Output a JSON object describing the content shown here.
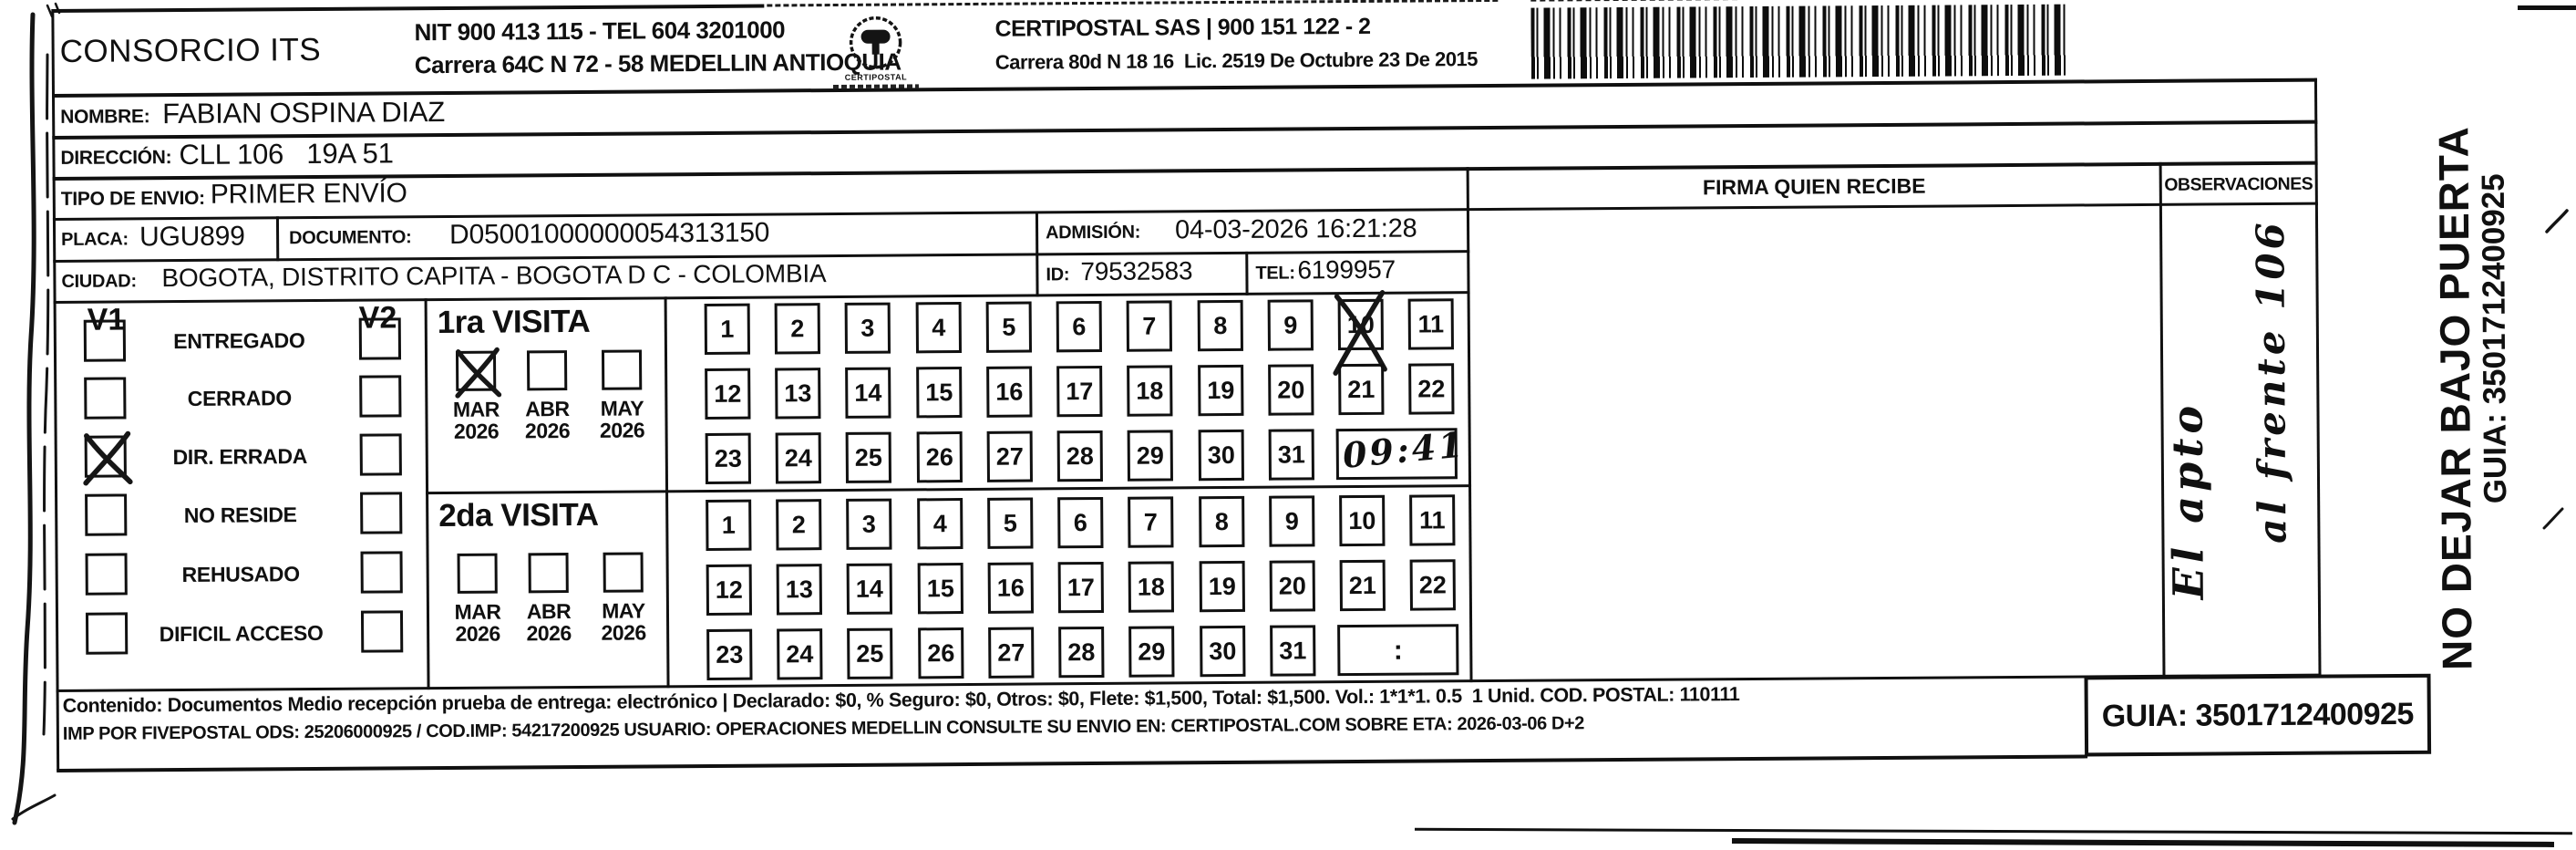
{
  "header": {
    "company": "CONSORCIO ITS",
    "company_info_line1": "NIT 900 413 115 - TEL 604 3201000",
    "company_info_line2": "Carrera 64C N 72 - 58 MEDELLIN ANTIOQUIA",
    "logo_caption": "CERTIPOSTAL",
    "partner_line1": "CERTIPOSTAL SAS | 900 151 122 - 2",
    "partner_line2": "Carrera 80d N 18 16  Lic. 2519 De Octubre 23 De 2015"
  },
  "recipient": {
    "nombre_label": "NOMBRE:",
    "nombre": "FABIAN OSPINA DIAZ",
    "direccion_label": "DIRECCIÓN:",
    "direccion": "CLL 106   19A 51",
    "tipo_label": "TIPO DE ENVIO:",
    "tipo": "PRIMER ENVÍO",
    "placa_label": "PLACA:",
    "placa": "UGU899",
    "documento_label": "DOCUMENTO:",
    "documento": "D05001000000054313150",
    "admision_label": "ADMISIÓN:",
    "admision": "04-03-2026 16:21:28",
    "ciudad_label": "CIUDAD:",
    "ciudad": "BOGOTA, DISTRITO CAPITA - BOGOTA D C - COLOMBIA",
    "id_label": "ID:",
    "id": "79532583",
    "tel_label": "TEL:",
    "tel": "6199957"
  },
  "columns": {
    "firma": "FIRMA QUIEN RECIBE",
    "observaciones": "OBSERVACIONES"
  },
  "status": {
    "v1_label": "V1",
    "v2_label": "V2",
    "options": [
      {
        "label": "ENTREGADO",
        "v1": false,
        "v2": false
      },
      {
        "label": "CERRADO",
        "v1": false,
        "v2": false
      },
      {
        "label": "DIR. ERRADA",
        "v1": true,
        "v2": false
      },
      {
        "label": "NO RESIDE",
        "v1": false,
        "v2": false
      },
      {
        "label": "REHUSADO",
        "v1": false,
        "v2": false
      },
      {
        "label": "DIFICIL ACCESO",
        "v1": false,
        "v2": false
      }
    ]
  },
  "visits": [
    {
      "title": "1ra VISITA",
      "months": [
        {
          "month": "MAR",
          "year": "2026",
          "checked": true
        },
        {
          "month": "ABR",
          "year": "2026",
          "checked": false
        },
        {
          "month": "MAY",
          "year": "2026",
          "checked": false
        }
      ],
      "crossed_day": "10",
      "time_handwritten": "09:41"
    },
    {
      "title": "2da VISITA",
      "months": [
        {
          "month": "MAR",
          "year": "2026",
          "checked": false
        },
        {
          "month": "ABR",
          "year": "2026",
          "checked": false
        },
        {
          "month": "MAY",
          "year": "2026",
          "checked": false
        }
      ],
      "crossed_day": "",
      "time_handwritten": ""
    }
  ],
  "day_rows": [
    [
      "1",
      "2",
      "3",
      "4",
      "5",
      "6",
      "7",
      "8",
      "9",
      "10",
      "11"
    ],
    [
      "12",
      "13",
      "14",
      "15",
      "16",
      "17",
      "18",
      "19",
      "20",
      "21",
      "22"
    ],
    [
      "23",
      "24",
      "25",
      "26",
      "27",
      "28",
      "29",
      "30",
      "31"
    ]
  ],
  "time_colon": ":",
  "handwriting": {
    "obs_line1": "El apto",
    "obs_line2": "al frente 106"
  },
  "side_note": {
    "line1": "NO DEJAR BAJO PUERTA",
    "line2": "GUIA: 3501712400925"
  },
  "footer": {
    "line1": "Contenido: Documentos Medio recepción prueba de entrega: electrónico | Declarado: $0, % Seguro: $0, Otros: $0, Flete: $1,500, Total: $1,500. Vol.: 1*1*1. 0.5  1 Unid. COD. POSTAL: 110111",
    "line2": "IMP POR FIVEPOSTAL ODS: 25206000925 / COD.IMP: 54217200925 USUARIO: OPERACIONES MEDELLIN CONSULTE SU ENVIO EN: CERTIPOSTAL.COM SOBRE ETA: 2026-03-06 D+2",
    "guia": "GUIA: 3501712400925"
  },
  "colors": {
    "ink": "#101010",
    "paper": "#ffffff"
  }
}
